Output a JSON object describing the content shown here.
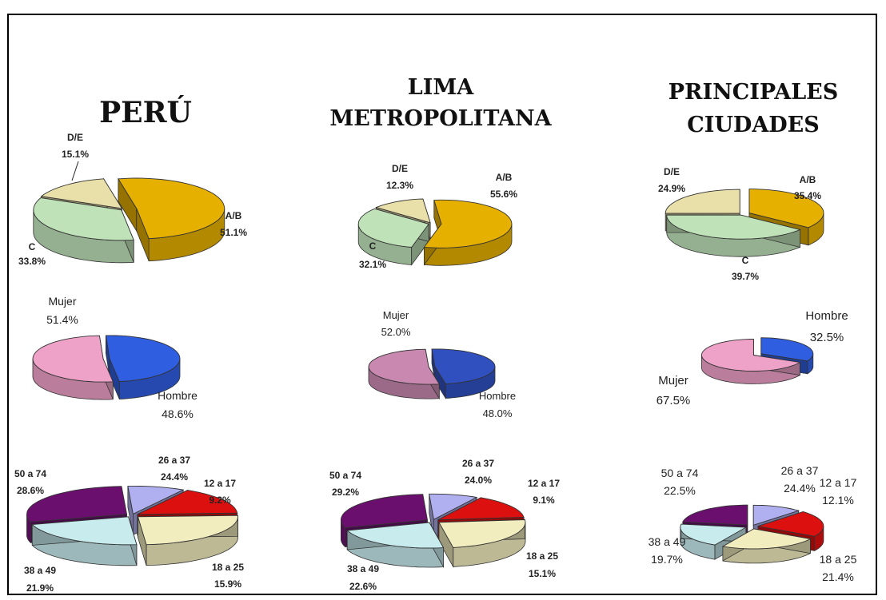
{
  "chart_data": [
    {
      "type": "pie",
      "region": "PERÚ",
      "panel": "nse",
      "labels": [
        "A/B",
        "C",
        "D/E"
      ],
      "values": [
        51.1,
        33.8,
        15.1
      ],
      "value_labels": [
        "51.1%",
        "33.8%",
        "15.1%"
      ]
    },
    {
      "type": "pie",
      "region": "PERÚ",
      "panel": "sexo",
      "labels": [
        "Hombre",
        "Mujer"
      ],
      "values": [
        48.6,
        51.4
      ],
      "value_labels": [
        "48.6%",
        "51.4%"
      ]
    },
    {
      "type": "pie",
      "region": "PERÚ",
      "panel": "edad",
      "labels": [
        "12 a 17",
        "18 a 25",
        "26 a 37",
        "38 a 49",
        "50 a 74"
      ],
      "values": [
        9.2,
        15.9,
        24.4,
        21.9,
        28.6
      ],
      "value_labels": [
        "9.2%",
        "15.9%",
        "24.4%",
        "21.9%",
        "28.6%"
      ]
    },
    {
      "type": "pie",
      "region": "LIMA METROPOLITANA",
      "panel": "nse",
      "labels": [
        "A/B",
        "C",
        "D/E"
      ],
      "values": [
        55.6,
        32.1,
        12.3
      ],
      "value_labels": [
        "55.6%",
        "32.1%",
        "12.3%"
      ]
    },
    {
      "type": "pie",
      "region": "LIMA METROPOLITANA",
      "panel": "sexo",
      "labels": [
        "Hombre",
        "Mujer"
      ],
      "values": [
        48.0,
        52.0
      ],
      "value_labels": [
        "48.0%",
        "52.0%"
      ]
    },
    {
      "type": "pie",
      "region": "LIMA METROPOLITANA",
      "panel": "edad",
      "labels": [
        "12 a 17",
        "18 a 25",
        "26 a 37",
        "38 a 49",
        "50 a 74"
      ],
      "values": [
        9.1,
        15.1,
        24.0,
        22.6,
        29.2
      ],
      "value_labels": [
        "9.1%",
        "15.1%",
        "24.0%",
        "22.6%",
        "29.2%"
      ]
    },
    {
      "type": "pie",
      "region": "PRINCIPALES CIUDADES",
      "panel": "nse",
      "labels": [
        "A/B",
        "C",
        "D/E"
      ],
      "values": [
        35.4,
        39.7,
        24.9
      ],
      "value_labels": [
        "35.4%",
        "39.7%",
        "24.9%"
      ]
    },
    {
      "type": "pie",
      "region": "PRINCIPALES CIUDADES",
      "panel": "sexo",
      "labels": [
        "Hombre",
        "Mujer"
      ],
      "values": [
        32.5,
        67.5
      ],
      "value_labels": [
        "32.5%",
        "67.5%"
      ]
    },
    {
      "type": "pie",
      "region": "PRINCIPALES CIUDADES",
      "panel": "edad",
      "labels": [
        "12 a 17",
        "18 a 25",
        "26 a 37",
        "38 a 49",
        "50 a 74"
      ],
      "values": [
        12.1,
        21.4,
        24.4,
        19.7,
        22.5
      ],
      "value_labels": [
        "12.1%",
        "21.4%",
        "24.4%",
        "19.7%",
        "22.5%"
      ]
    }
  ],
  "titles": {
    "peru": "PERÚ",
    "lima_1": "LIMA",
    "lima_2": "METROPOLITANA",
    "ciudades_1": "PRINCIPALES",
    "ciudades_2": "CIUDADES"
  },
  "colors": {
    "A/B": "#e6b000",
    "C": "#bfe2b8",
    "D/E": "#e8e0a8",
    "Hombre": "#2f5ee0",
    "Mujer": "#eea2c8",
    "12 a 17": "#b0b0f0",
    "18 a 25": "#dd1010",
    "26 a 37": "#f2edbf",
    "38 a 49": "#c8ecee",
    "50 a 74": "#6a0f6e",
    "lima_sexo_Hombre": "#3050c0",
    "lima_sexo_Mujer": "#c888b0"
  }
}
